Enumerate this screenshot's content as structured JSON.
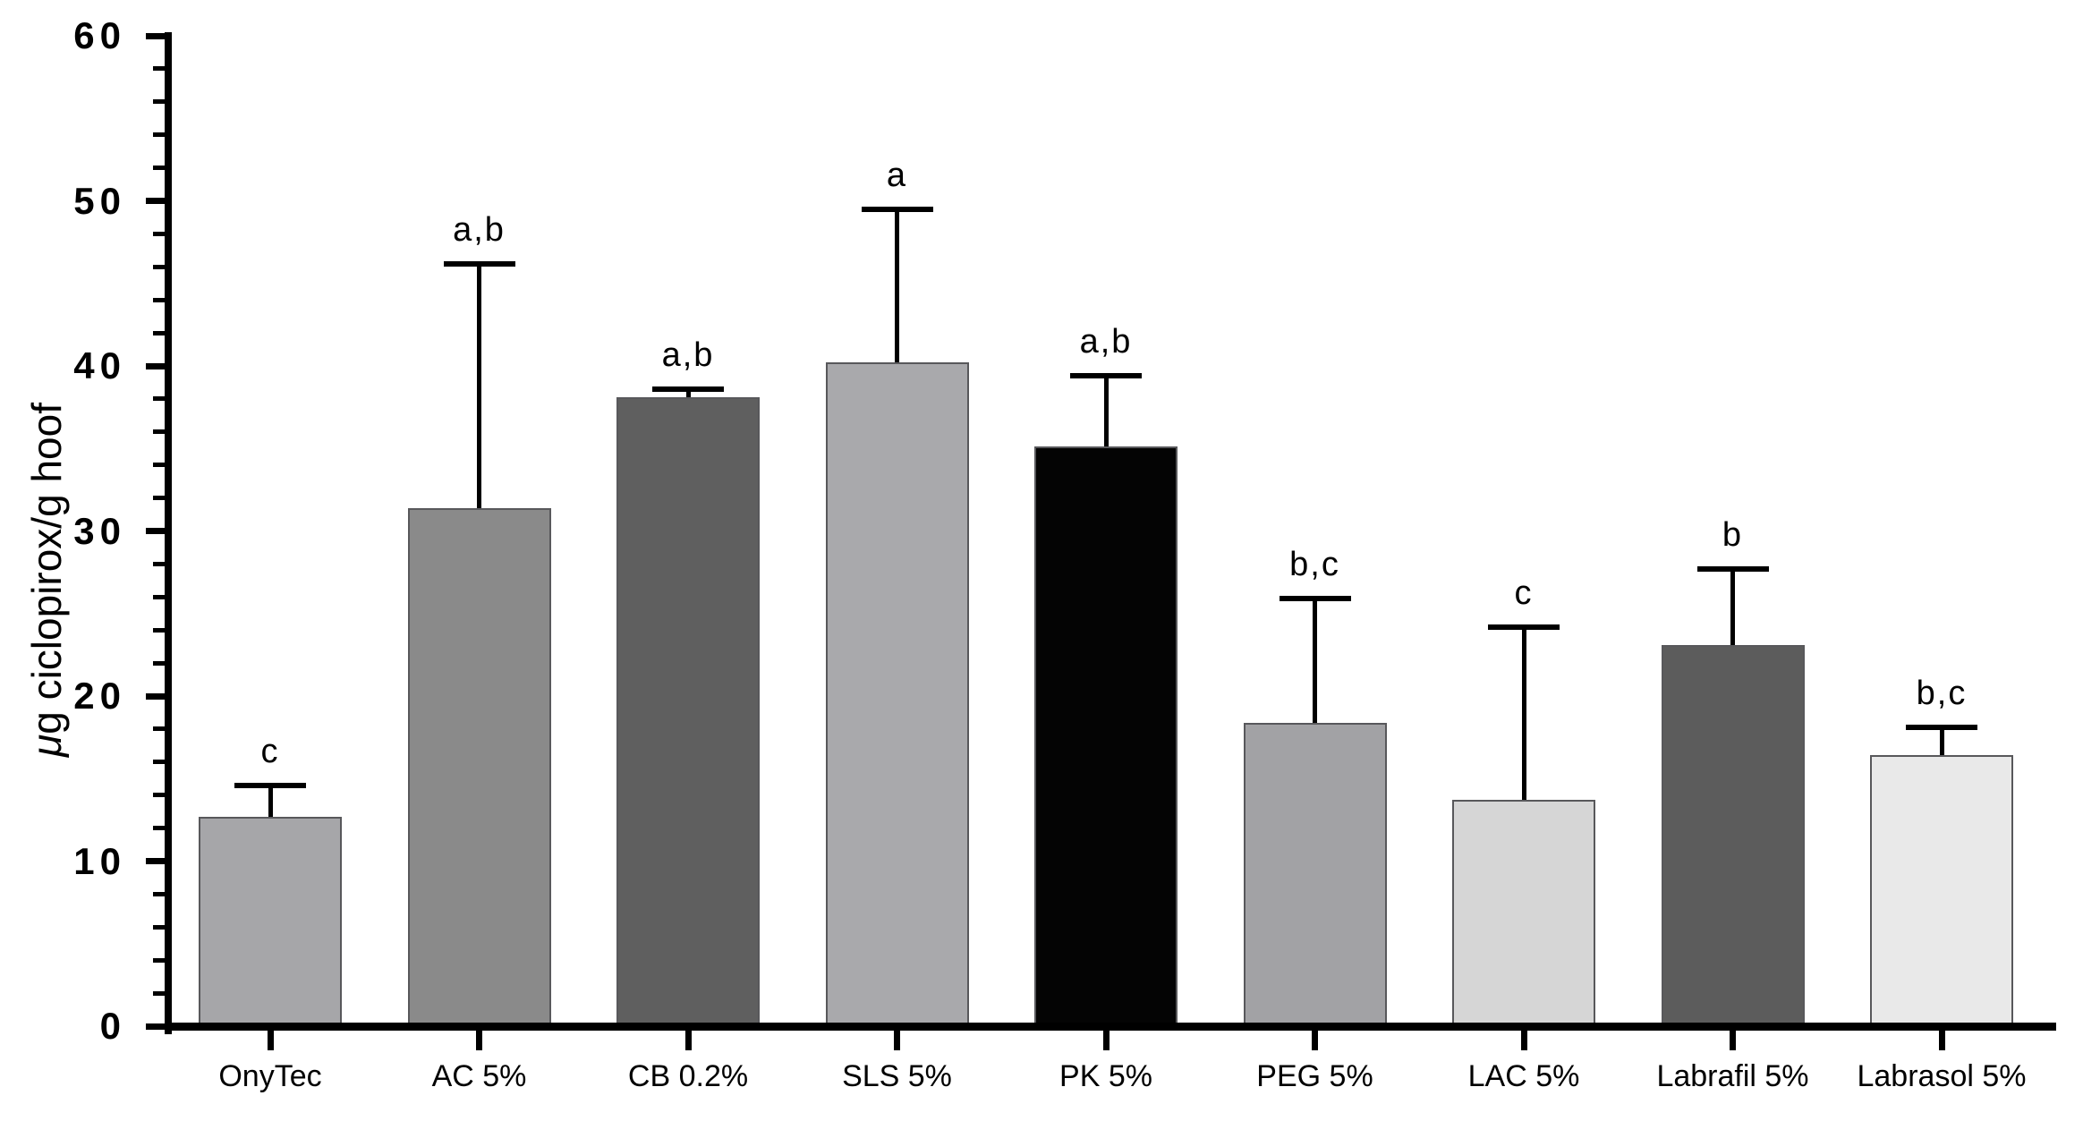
{
  "figure": {
    "background": "#ffffff"
  },
  "chart_data": {
    "type": "bar",
    "title": "",
    "xlabel": "",
    "ylabel": "μg ciclopirox/g hoof",
    "ylim": [
      0,
      60
    ],
    "ytick_step": 10,
    "yticks": [
      0,
      10,
      20,
      30,
      40,
      50,
      60
    ],
    "y_minor_tick_step": 2,
    "grid": false,
    "legend": "none",
    "categories": [
      "OnyTec",
      "AC 5%",
      "CB 0.2%",
      "SLS 5%",
      "PK 5%",
      "PEG 5%",
      "LAC 5%",
      "Labrafil 5%",
      "Labrasol 5%"
    ],
    "values": [
      12.7,
      31.4,
      38.1,
      40.2,
      35.1,
      18.4,
      13.7,
      23.1,
      16.4
    ],
    "errors_sd_up": [
      1.9,
      14.8,
      0.5,
      9.3,
      4.3,
      7.5,
      10.5,
      4.6,
      1.7
    ],
    "error_tops": [
      14.6,
      46.2,
      38.6,
      49.5,
      39.4,
      25.9,
      24.2,
      27.7,
      18.1
    ],
    "sig_labels": [
      "c",
      "a,b",
      "a,b",
      "a",
      "a,b",
      "b,c",
      "c",
      "b",
      "b,c"
    ],
    "bar_colors": [
      "#a6a6a9",
      "#8a8a8a",
      "#5f5f5f",
      "#a9a9ac",
      "#040404",
      "#a2a2a5",
      "#d6d6d6",
      "#5c5c5c",
      "#e9e9e9"
    ],
    "bar_border_color": "#58585b",
    "axis_color": "#000000",
    "error_bar_color": "#000000",
    "text_color": "#000000"
  }
}
